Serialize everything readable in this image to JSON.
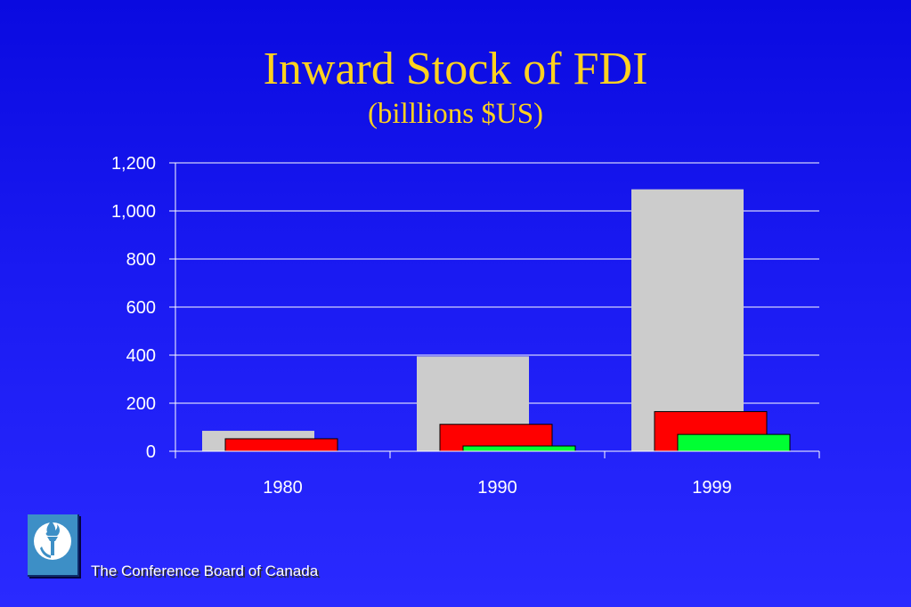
{
  "slide": {
    "title": "Inward Stock of FDI",
    "subtitle": "(billlions $US)"
  },
  "chart_data": {
    "type": "bar",
    "title": "Inward Stock of FDI",
    "subtitle": "(billlions $US)",
    "categories": [
      "1980",
      "1990",
      "1999"
    ],
    "series": [
      {
        "color": "#cccccc",
        "values": [
          85,
          395,
          1090
        ]
      },
      {
        "color": "#ff0000",
        "values": [
          52,
          112,
          165
        ]
      },
      {
        "color": "#00ff33",
        "values": [
          0,
          22,
          70
        ]
      }
    ],
    "ylim": [
      0,
      1200
    ],
    "yticks": [
      0,
      200,
      400,
      600,
      800,
      1000,
      1200
    ],
    "ytick_labels": [
      "0",
      "200",
      "400",
      "600",
      "800",
      "1,000",
      "1,200"
    ],
    "grid": true,
    "legend": "none"
  },
  "footer": {
    "organization": "The Conference Board of Canada",
    "logo_icon": "torch-icon"
  }
}
